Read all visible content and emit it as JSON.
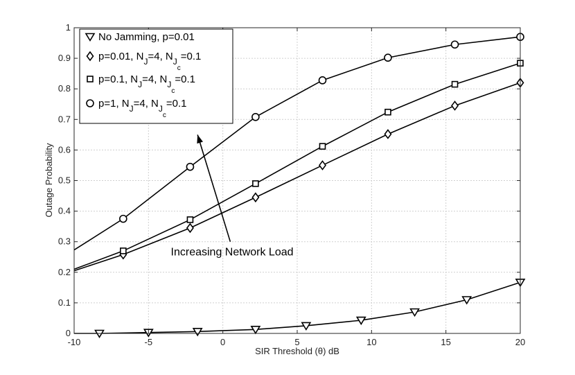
{
  "chart_data": {
    "type": "line",
    "title": "",
    "xlabel": "SIR Threshold (θ) dB",
    "ylabel": "Outage Probability",
    "xlim": [
      -10,
      20
    ],
    "ylim": [
      0,
      1
    ],
    "xticks": [
      "-10",
      "-5",
      "0",
      "5",
      "10",
      "15",
      "20"
    ],
    "yticks": [
      "0",
      "0.1",
      "0.2",
      "0.3",
      "0.4",
      "0.5",
      "0.6",
      "0.7",
      "0.8",
      "0.9",
      "1"
    ],
    "grid": true,
    "legend_position": "top-left",
    "series": [
      {
        "name": "No Jamming, p=0.01",
        "marker": "triangle-down",
        "x": [
          -10,
          -8.3,
          -5.0,
          -1.7,
          2.2,
          5.6,
          9.3,
          12.9,
          16.4,
          20
        ],
        "y": [
          0.0,
          0.0,
          0.003,
          0.006,
          0.013,
          0.025,
          0.043,
          0.07,
          0.11,
          0.167
        ],
        "markers_x": [
          -8.3,
          -5.0,
          -1.7,
          2.2,
          5.6,
          9.3,
          12.9,
          16.4,
          20
        ]
      },
      {
        "name_parts": [
          "p=0.01, N",
          "J",
          "=4, N",
          "J",
          "c",
          "=0.1"
        ],
        "marker": "diamond",
        "x": [
          -10,
          -6.7,
          -2.2,
          2.2,
          6.7,
          11.1,
          15.6,
          20
        ],
        "y": [
          0.205,
          0.258,
          0.345,
          0.445,
          0.55,
          0.652,
          0.745,
          0.82
        ],
        "markers_x": [
          -6.7,
          -2.2,
          2.2,
          6.7,
          11.1,
          15.6,
          20
        ]
      },
      {
        "name_parts": [
          "p=0.1, N",
          "J",
          "=4, N",
          "J",
          "c",
          "=0.1"
        ],
        "marker": "square",
        "x": [
          -10,
          -6.7,
          -2.2,
          2.2,
          6.7,
          11.1,
          15.6,
          20
        ],
        "y": [
          0.21,
          0.27,
          0.372,
          0.49,
          0.612,
          0.724,
          0.815,
          0.884
        ],
        "markers_x": [
          -6.7,
          -2.2,
          2.2,
          6.7,
          11.1,
          15.6,
          20
        ]
      },
      {
        "name_parts": [
          "p=1, N",
          "J",
          "=4, N",
          "J",
          "c",
          "=0.1"
        ],
        "marker": "circle",
        "x": [
          -10,
          -6.7,
          -2.2,
          2.2,
          6.7,
          11.1,
          15.6,
          20
        ],
        "y": [
          0.273,
          0.375,
          0.545,
          0.708,
          0.828,
          0.902,
          0.945,
          0.97
        ],
        "markers_x": [
          -6.7,
          -2.2,
          2.2,
          6.7,
          11.1,
          15.6,
          20
        ]
      }
    ],
    "annotations": [
      {
        "text": "Increasing Network Load",
        "text_at": [
          -3.5,
          0.255
        ],
        "arrow_from": [
          0.5,
          0.3
        ],
        "arrow_to": [
          -1.7,
          0.65
        ]
      }
    ]
  }
}
